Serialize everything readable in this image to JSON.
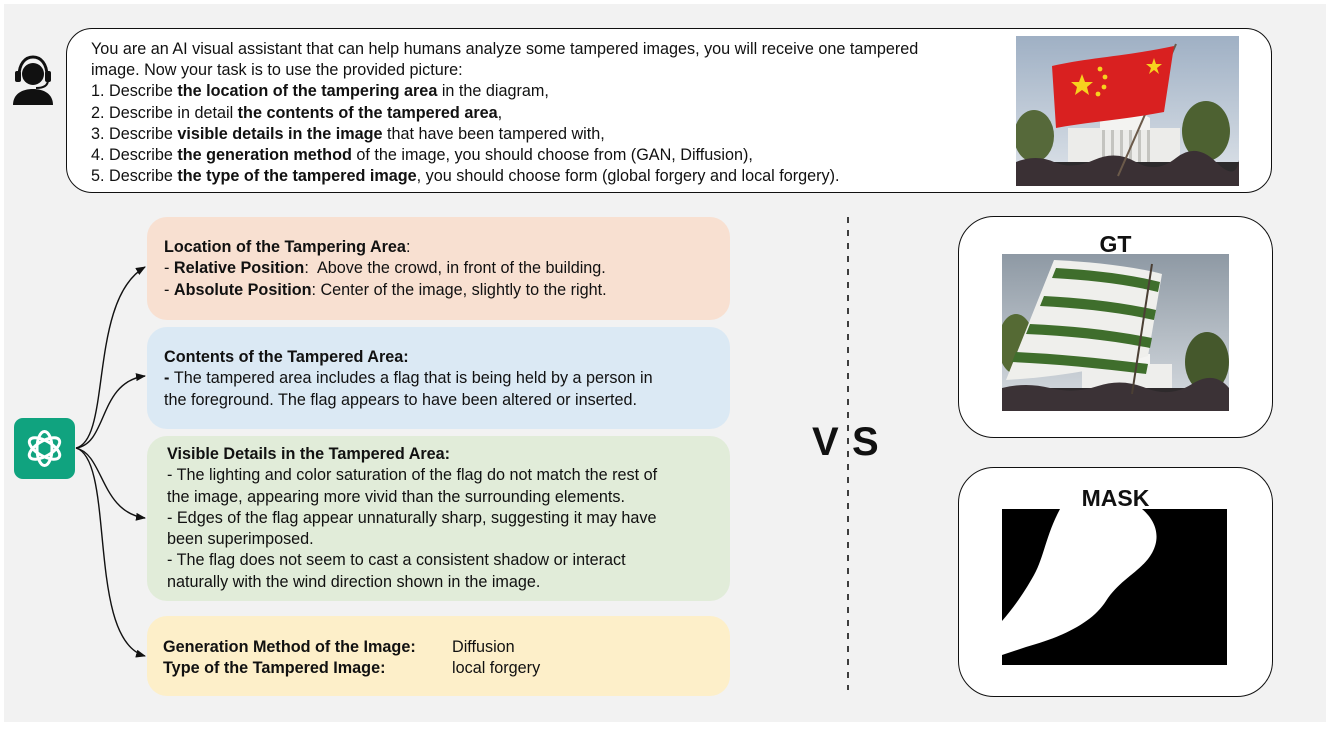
{
  "prompt": {
    "lines": [
      {
        "pre": "You are an AI visual assistant that can help humans analyze some tampered images, you will receive one tampered",
        "bold": "",
        "post": ""
      },
      {
        "pre": "image. Now your task is to use the provided picture:",
        "bold": "",
        "post": ""
      },
      {
        "pre": "1. Describe ",
        "bold": "the location of the tampering area",
        "post": " in the diagram,"
      },
      {
        "pre": "2. Describe in detail ",
        "bold": "the contents of the tampered area",
        "post": ","
      },
      {
        "pre": "3. Describe ",
        "bold": "visible details in the image",
        "post": " that have been tampered with,"
      },
      {
        "pre": "4. Describe ",
        "bold": "the generation method",
        "post": " of the image, you should choose from (GAN, Diffusion),"
      },
      {
        "pre": "5. Describe ",
        "bold": "the type of the tampered image",
        "post": ", you should choose form (global forgery and local forgery)."
      }
    ]
  },
  "location_card": {
    "title": "Location of the Tampering Area",
    "title_suffix": ":",
    "relative_label": "Relative Position",
    "relative_sep": ":  ",
    "relative_value": "Above the crowd, in front of the building.",
    "absolute_label": "Absolute Position",
    "absolute_sep": ": ",
    "absolute_value": "Center of the image, slightly to the right.",
    "dash": "- "
  },
  "contents_card": {
    "title": "Contents of the Tampered Area:",
    "dash": "- ",
    "line1": "The tampered area includes a flag that is being held by a person in",
    "line2": "the foreground. The flag appears to have been altered or inserted."
  },
  "details_card": {
    "title": "Visible Details in the Tampered Area:",
    "lines": [
      "- The lighting and color saturation of the flag do not match the rest of",
      "the image, appearing more vivid than the surrounding elements.",
      "- Edges of the flag appear unnaturally sharp, suggesting it may have",
      "been superimposed.",
      "- The flag does not seem to cast a consistent shadow or interact",
      "naturally with the wind direction shown in the image."
    ]
  },
  "method_card": {
    "generation_label": "Generation Method of the Image:",
    "generation_value": "Diffusion",
    "type_label": "Type of the Tampered Image:",
    "type_value": "local forgery"
  },
  "vs": {
    "v": "V",
    "s": "S"
  },
  "gt_panel": {
    "title": "GT"
  },
  "mask_panel": {
    "title": "MASK"
  },
  "icons": {
    "user": "user-headset-icon",
    "assistant": "chatgpt-logo-icon"
  },
  "colors": {
    "location_bg": "#f8e0d1",
    "contents_bg": "#dbe9f4",
    "details_bg": "#e1ecd9",
    "method_bg": "#fdefc9",
    "logo_green": "#10a37f"
  }
}
